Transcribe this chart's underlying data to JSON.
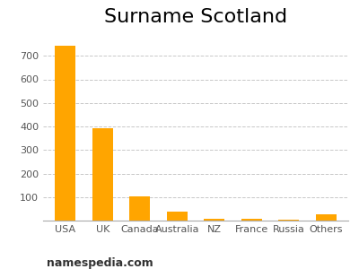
{
  "title": "Surname Scotland",
  "categories": [
    "USA",
    "UK",
    "Canada",
    "Australia",
    "NZ",
    "France",
    "Russia",
    "Others"
  ],
  "values": [
    743,
    393,
    103,
    38,
    8,
    9,
    5,
    26
  ],
  "bar_color": "#FFA500",
  "ylim": [
    0,
    800
  ],
  "yticks": [
    100,
    200,
    300,
    400,
    500,
    600,
    700
  ],
  "grid_color": "#c8c8c8",
  "background_color": "#ffffff",
  "title_fontsize": 16,
  "tick_fontsize": 8,
  "watermark": "namespedia.com",
  "watermark_fontsize": 9
}
